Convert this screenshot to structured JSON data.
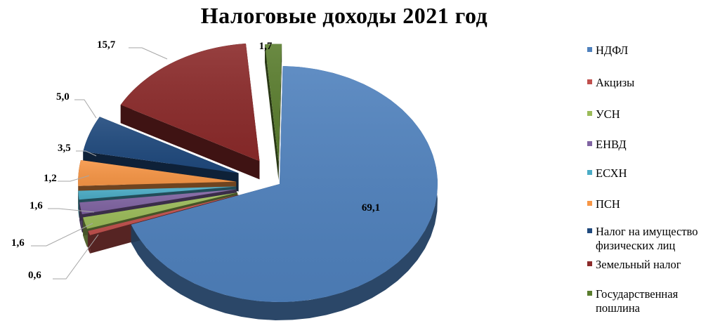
{
  "chart_data": {
    "type": "pie",
    "title": "Налоговые доходы 2021 год",
    "slices": [
      {
        "name": "НДФЛ",
        "value": 69.1,
        "label": "69,1",
        "color": "#4f81bd"
      },
      {
        "name": "Акцизы",
        "value": 0.6,
        "label": "0,6",
        "color": "#c0504d"
      },
      {
        "name": "УСН",
        "value": 1.6,
        "label": "1,6",
        "color": "#9bbb59"
      },
      {
        "name": "ЕНВД",
        "value": 1.6,
        "label": "1,6",
        "color": "#8064a2"
      },
      {
        "name": "ЕСХН",
        "value": 1.2,
        "label": "1,2",
        "color": "#4bacc6"
      },
      {
        "name": "ПСН",
        "value": 3.5,
        "label": "3,5",
        "color": "#f79646"
      },
      {
        "name": "Налог на имущество физических лиц",
        "value": 5.0,
        "label": "5,0",
        "color": "#1f497d"
      },
      {
        "name": "Земельный налог",
        "value": 15.7,
        "label": "15,7",
        "color": "#8b2a2a"
      },
      {
        "name": "Государственная пошлина",
        "value": 1.7,
        "label": "1,7",
        "color": "#5a7d2e"
      }
    ],
    "legend": {
      "position": "right",
      "items": [
        {
          "label": "НДФЛ",
          "color": "#4f81bd"
        },
        {
          "label": "Акцизы",
          "color": "#c0504d"
        },
        {
          "label": "УСН",
          "color": "#9bbb59"
        },
        {
          "label": "ЕНВД",
          "color": "#8064a2"
        },
        {
          "label": "ЕСХН",
          "color": "#4bacc6"
        },
        {
          "label": "ПСН",
          "color": "#f79646"
        },
        {
          "label": "Налог на имущество физических лиц",
          "color": "#1f497d"
        },
        {
          "label": "Земельный налог",
          "color": "#8b2a2a"
        },
        {
          "label": "Государственная пошлина",
          "color": "#5a7d2e"
        }
      ]
    },
    "style": "3d-exploded"
  }
}
